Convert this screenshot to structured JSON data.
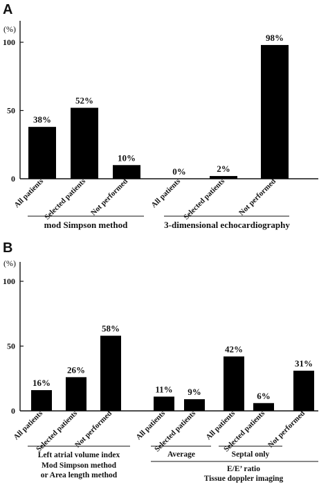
{
  "chart_data": [
    {
      "panel": "A",
      "type": "bar",
      "ylabel": "(%)",
      "ylim": [
        0,
        100
      ],
      "yticks": [
        0,
        50,
        100
      ],
      "categories": [
        "All patients",
        "Selected patients",
        "Not performed",
        "All patients",
        "Selected patients",
        "Not performed"
      ],
      "values": [
        38,
        52,
        10,
        0,
        2,
        98
      ],
      "value_labels": [
        "38%",
        "52%",
        "10%",
        "0%",
        "2%",
        "98%"
      ],
      "groups": [
        {
          "label": "mod Simpson method",
          "bars": [
            0,
            1,
            2
          ]
        },
        {
          "label": "3-dimensional echocardiography",
          "bars": [
            3,
            4,
            5
          ]
        }
      ],
      "color": "#000000"
    },
    {
      "panel": "B",
      "type": "bar",
      "ylabel": "(%)",
      "ylim": [
        0,
        100
      ],
      "yticks": [
        0,
        50,
        100
      ],
      "categories": [
        "All patients",
        "Selected patients",
        "Not performed",
        "All patients",
        "Selected patients",
        "All patients",
        "Selected patients",
        "Not performed"
      ],
      "values": [
        16,
        26,
        58,
        11,
        9,
        42,
        6,
        31
      ],
      "value_labels": [
        "16%",
        "26%",
        "58%",
        "11%",
        "9%",
        "42%",
        "6%",
        "31%"
      ],
      "groups": [
        {
          "label": "Left  atrial volume index",
          "bars": [
            0,
            1,
            2
          ]
        },
        {
          "label": "Average",
          "bars": [
            3,
            4
          ]
        },
        {
          "label": "Septal only",
          "bars": [
            5,
            6
          ]
        },
        {
          "label": "E/E’ ratio",
          "bars": [
            3,
            4,
            5,
            6,
            7
          ]
        }
      ],
      "footnotes": [
        "Mod Simpson method",
        "or Area length method",
        "Tissue doppler imaging"
      ],
      "color": "#000000"
    }
  ]
}
